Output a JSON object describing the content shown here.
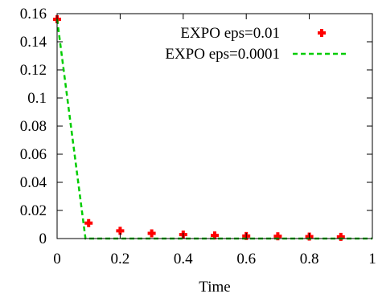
{
  "chart_data": {
    "type": "scatter",
    "title": "",
    "xlabel": "Time",
    "ylabel": "",
    "xlim": [
      0,
      1
    ],
    "ylim": [
      0,
      0.16
    ],
    "x_ticks": [
      "0",
      "0.2",
      "0.4",
      "0.6",
      "0.8",
      "1"
    ],
    "y_ticks": [
      "0",
      "0.02",
      "0.04",
      "0.06",
      "0.08",
      "0.1",
      "0.12",
      "0.14",
      "0.16"
    ],
    "grid": false,
    "legend_position": "top-right",
    "series": [
      {
        "name": "EXPO eps=0.01",
        "style": "points",
        "marker": "plus",
        "color": "#ff0000",
        "x": [
          0,
          0.1,
          0.2,
          0.3,
          0.4,
          0.5,
          0.6,
          0.7,
          0.8,
          0.9
        ],
        "y": [
          0.156,
          0.011,
          0.0055,
          0.0037,
          0.0028,
          0.0022,
          0.0018,
          0.0016,
          0.0014,
          0.0012
        ]
      },
      {
        "name": "EXPO eps=0.0001",
        "style": "dashed-line",
        "color": "#00cc00",
        "x": [
          0,
          0.09,
          0.1,
          0.2,
          0.3,
          0.4,
          0.5,
          0.6,
          0.7,
          0.8,
          0.9,
          1
        ],
        "y": [
          0.156,
          0.0,
          0.0,
          0.0,
          0.0,
          0.0,
          0.0,
          0.0,
          0.0,
          0.0,
          0.0,
          0.0
        ]
      }
    ]
  }
}
